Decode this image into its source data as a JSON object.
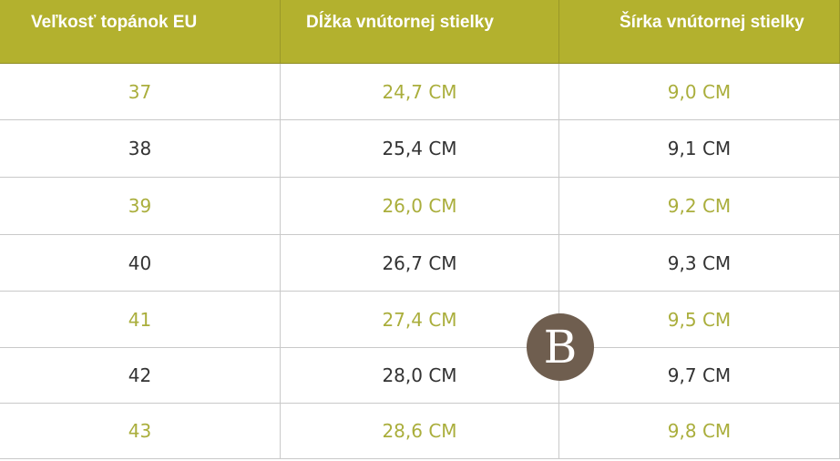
{
  "table": {
    "header": [
      "Veľkosť topánok EU",
      "Dĺžka vnútornej stielky",
      "Šírka vnútornej stielky"
    ],
    "rows": [
      [
        "37",
        "24,7 CM",
        "9,0 CM"
      ],
      [
        "38",
        "25,4 CM",
        "9,1 CM"
      ],
      [
        "39",
        "26,0 CM",
        "9,2 CM"
      ],
      [
        "40",
        "26,7 CM",
        "9,3 CM"
      ],
      [
        "41",
        "27,4 CM",
        "9,5 CM"
      ],
      [
        "42",
        "28,0 CM",
        "9,7 CM"
      ],
      [
        "43",
        "28,6 CM",
        "9,8 CM"
      ]
    ]
  },
  "logo": "B"
}
